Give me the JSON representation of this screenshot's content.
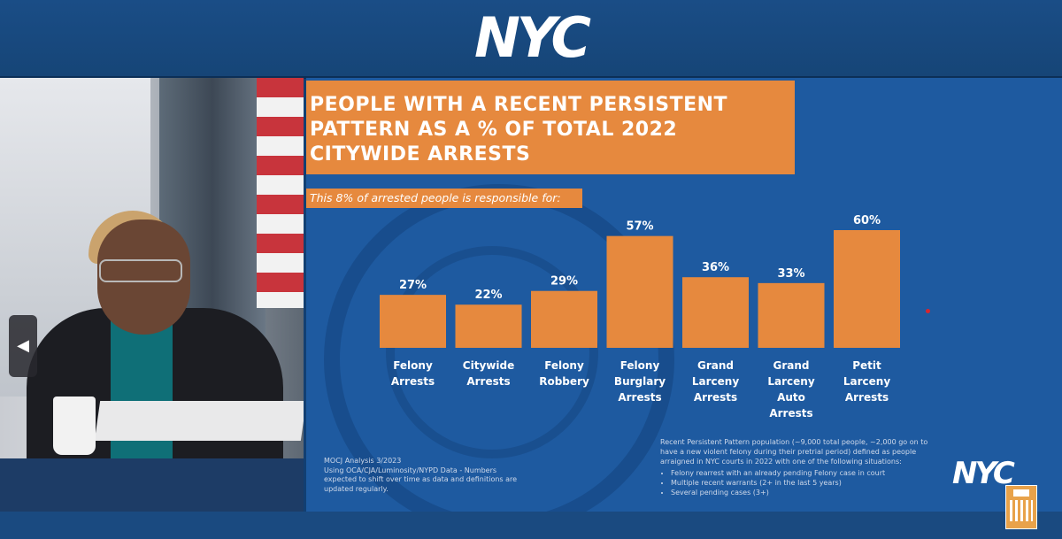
{
  "header": {
    "logo_text": "NYC"
  },
  "video": {
    "prev_button_symbol": "◀"
  },
  "slide": {
    "title": "PEOPLE WITH A RECENT PERSISTENT PATTERN AS A % OF TOTAL 2022 CITYWIDE ARRESTS",
    "subtitle": "This 8% of arrested people is responsible for:",
    "footnote_left": "MOCJ Analysis 3/2023\nUsing OCA/CJA/Luminosity/NYPD Data - Numbers expected to shift over time as data and definitions are updated regularly.",
    "footnote_right_intro": "Recent Persistent Pattern population (~9,000 total people, ~2,000 go on to have a new violent felony during their pretrial period) defined as people arraigned in NYC courts in 2022 with one of the following situations:",
    "footnote_right_items": [
      "Felony rearrest with an already pending Felony case in court",
      "Multiple recent warrants (2+ in the last 5 years)",
      "Several pending cases (3+)"
    ]
  },
  "corner": {
    "logo_text": "NYC"
  },
  "colors": {
    "bar": "#e6893e",
    "slide_bg": "#1e5aa0",
    "page_bg": "#123f72"
  },
  "chart_data": {
    "type": "bar",
    "title": "PEOPLE WITH A RECENT PERSISTENT PATTERN AS A % OF TOTAL 2022 CITYWIDE ARRESTS",
    "subtitle": "This 8% of arrested people is responsible for:",
    "categories": [
      [
        "Felony",
        "Arrests"
      ],
      [
        "Citywide",
        "Arrests"
      ],
      [
        "Felony",
        "Robbery"
      ],
      [
        "Felony",
        "Burglary",
        "Arrests"
      ],
      [
        "Grand",
        "Larceny",
        "Arrests"
      ],
      [
        "Grand",
        "Larceny",
        "Auto",
        "Arrests"
      ],
      [
        "Petit",
        "Larceny",
        "Arrests"
      ]
    ],
    "values": [
      27,
      22,
      29,
      57,
      36,
      33,
      60
    ],
    "data_labels": [
      "27%",
      "22%",
      "29%",
      "57%",
      "36%",
      "33%",
      "60%"
    ],
    "xlabel": "",
    "ylabel": "",
    "ylim": [
      0,
      60
    ],
    "grid": false
  }
}
